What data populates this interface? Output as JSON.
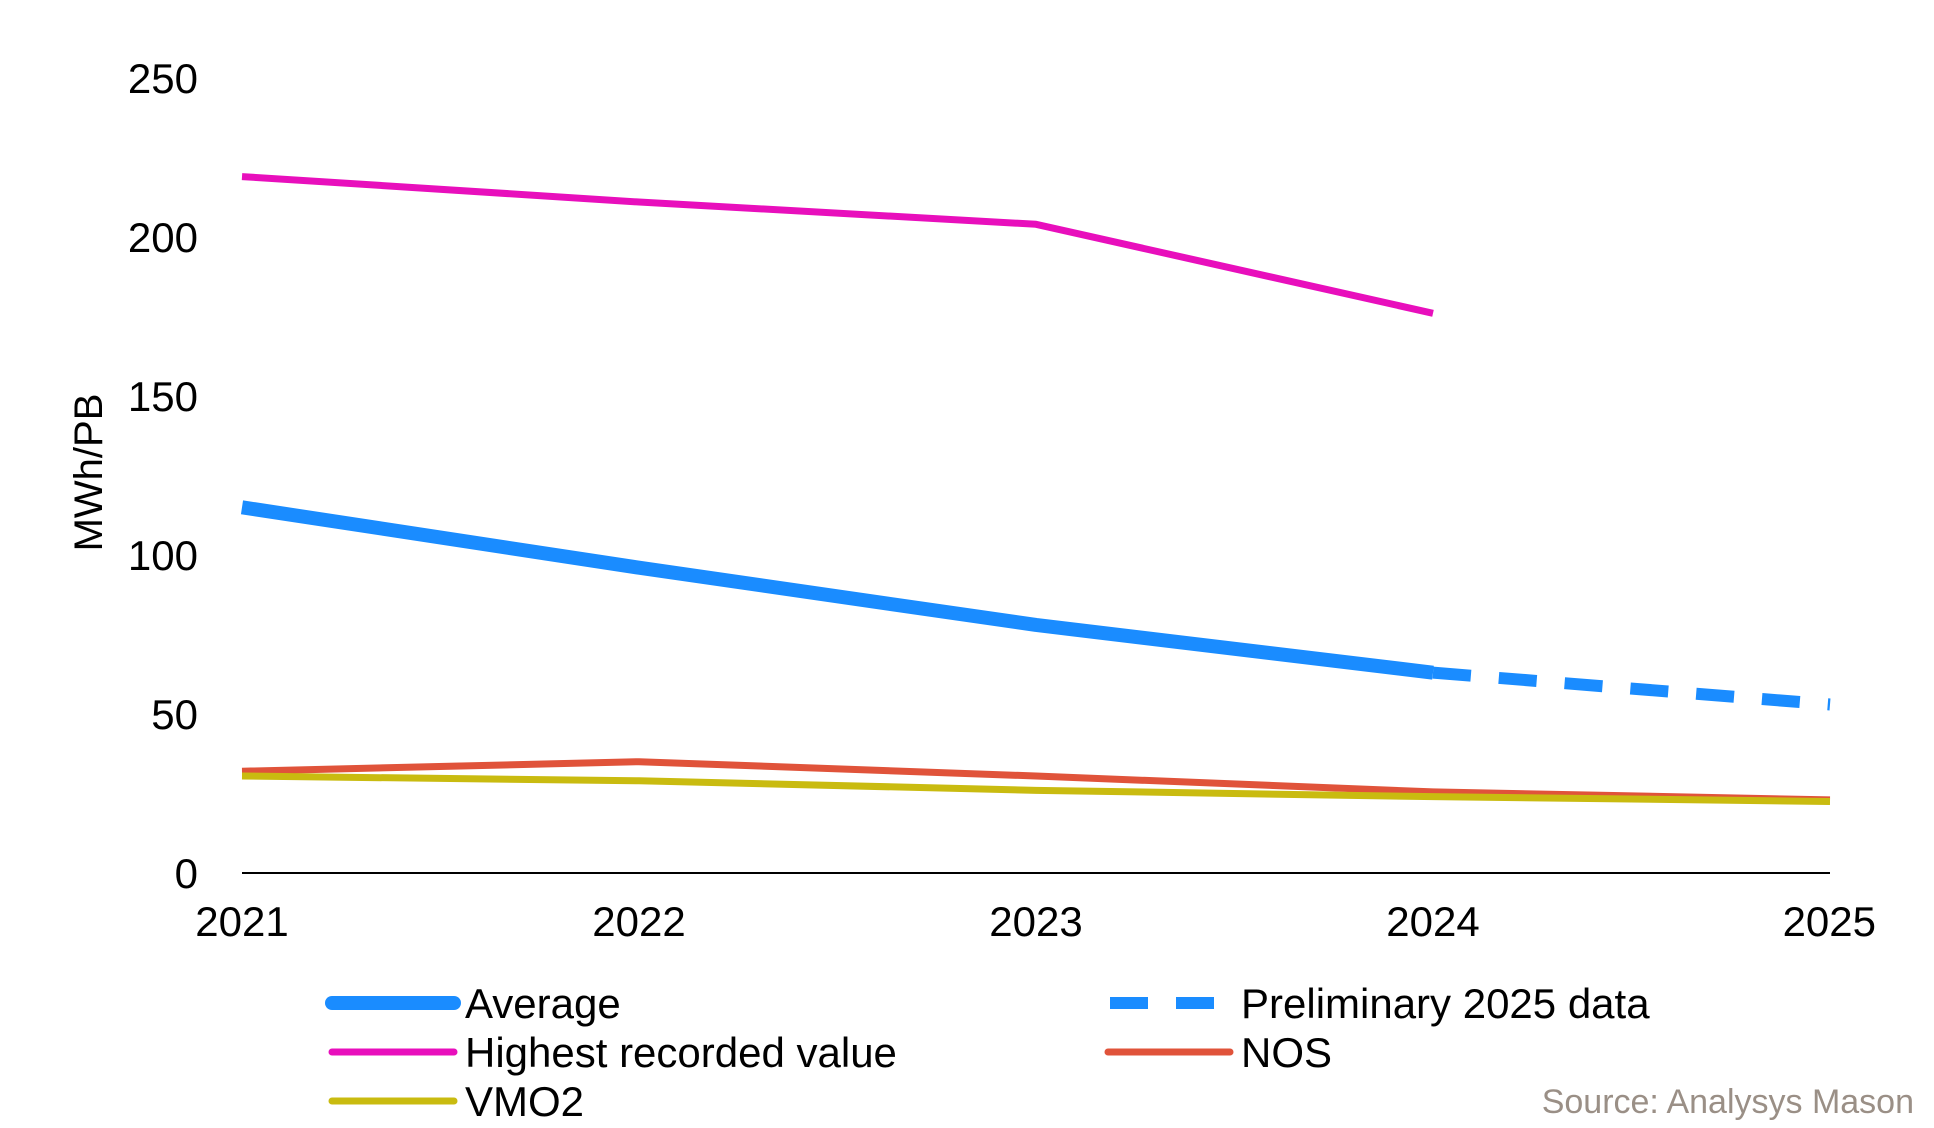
{
  "chart_data": {
    "type": "line",
    "title": "",
    "xlabel": "",
    "ylabel": "MWh/PB",
    "x": [
      "2021",
      "2022",
      "2023",
      "2024",
      "2025"
    ],
    "ylim": [
      0,
      250
    ],
    "yticks": [
      0,
      50,
      100,
      150,
      200,
      250
    ],
    "grid": false,
    "legend": "bottom",
    "series": [
      {
        "name": "Average",
        "color": "#1a8cff",
        "style": "solid",
        "values": [
          115,
          96,
          78,
          63,
          null
        ]
      },
      {
        "name": "Preliminary 2025 data",
        "color": "#1a8cff",
        "style": "dashed",
        "values": [
          null,
          null,
          null,
          63,
          53
        ]
      },
      {
        "name": "Highest recorded value",
        "color": "#e80fbc",
        "style": "solid",
        "values": [
          219,
          211,
          204,
          176,
          null
        ]
      },
      {
        "name": "NOS",
        "color": "#e0533a",
        "style": "solid",
        "values": [
          32,
          35,
          30.5,
          25.5,
          23
        ]
      },
      {
        "name": "VMO2",
        "color": "#c9bb10",
        "style": "solid",
        "values": [
          30.5,
          29,
          26,
          24,
          22.5
        ]
      }
    ],
    "source": "Source: Analysys Mason"
  }
}
